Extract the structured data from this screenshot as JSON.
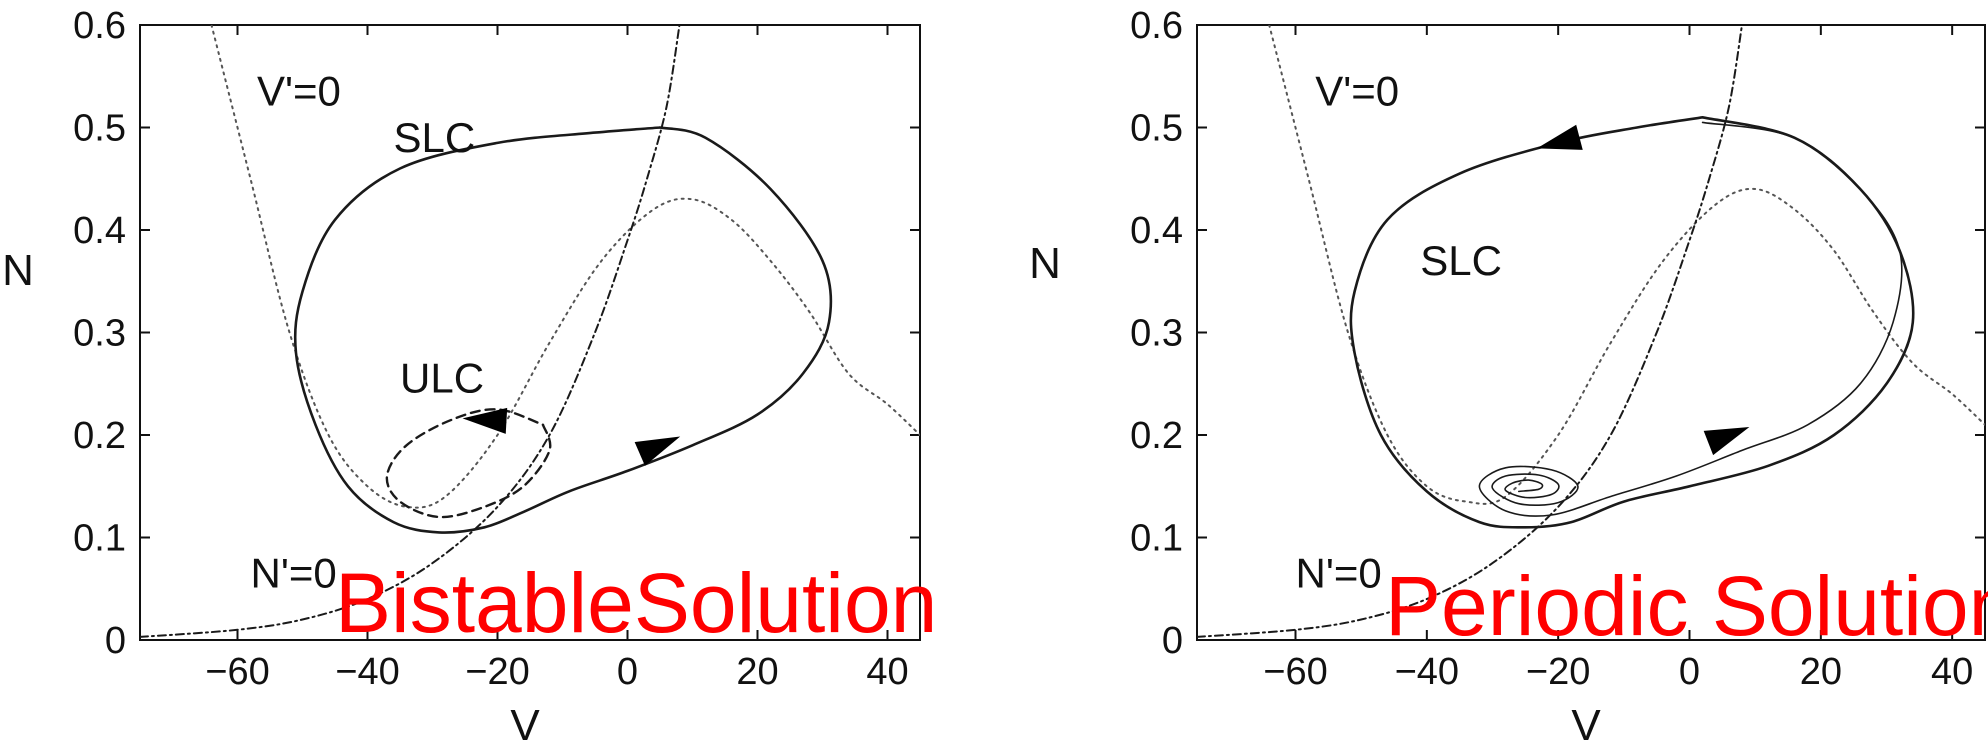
{
  "chart_data": [
    {
      "type": "line",
      "title": "",
      "xlabel": "V",
      "ylabel": "N",
      "xlim": [
        -75,
        45
      ],
      "ylim": [
        0,
        0.6
      ],
      "xticks": [
        -60,
        -40,
        -20,
        0,
        20,
        40
      ],
      "xtick_labels": [
        "−60",
        "−40",
        "−20",
        "0",
        "20",
        "40"
      ],
      "yticks": [
        0,
        0.1,
        0.2,
        0.3,
        0.4,
        0.5,
        0.6
      ],
      "ytick_labels": [
        "0",
        "0.1",
        "0.2",
        "0.3",
        "0.4",
        "0.5",
        "0.6"
      ],
      "grid": false,
      "overlay_text": "BistableSolution",
      "overlay_color": "#ff0000",
      "annotations": [
        {
          "text": "V'=0",
          "x": -57,
          "y": 0.535
        },
        {
          "text": "SLC",
          "x": -36,
          "y": 0.49
        },
        {
          "text": "ULC",
          "x": -35,
          "y": 0.255
        },
        {
          "text": "N'=0",
          "x": -58,
          "y": 0.065
        }
      ],
      "series": [
        {
          "style": "dotted",
          "points": [
            [
              -64,
              0.6
            ],
            [
              -58,
              0.45
            ],
            [
              -52,
              0.3
            ],
            [
              -46,
              0.2
            ],
            [
              -40,
              0.15
            ],
            [
              -34,
              0.13
            ],
            [
              -28,
              0.14
            ],
            [
              -20,
              0.2
            ],
            [
              -12,
              0.29
            ],
            [
              -4,
              0.37
            ],
            [
              4,
              0.42
            ],
            [
              10,
              0.43
            ],
            [
              16,
              0.41
            ],
            [
              22,
              0.37
            ],
            [
              28,
              0.32
            ],
            [
              34,
              0.26
            ],
            [
              40,
              0.23
            ],
            [
              45,
              0.2
            ]
          ]
        },
        {
          "style": "dashdot",
          "points": [
            [
              -75,
              0.003
            ],
            [
              -60,
              0.01
            ],
            [
              -50,
              0.02
            ],
            [
              -40,
              0.04
            ],
            [
              -30,
              0.075
            ],
            [
              -20,
              0.13
            ],
            [
              -12,
              0.2
            ],
            [
              -5,
              0.3
            ],
            [
              0,
              0.39
            ],
            [
              3,
              0.45
            ],
            [
              6,
              0.52
            ],
            [
              8,
              0.6
            ]
          ]
        },
        {
          "style": "solid",
          "points": [
            [
              5,
              0.5
            ],
            [
              -5,
              0.495
            ],
            [
              -20,
              0.485
            ],
            [
              -35,
              0.46
            ],
            [
              -45,
              0.41
            ],
            [
              -50,
              0.34
            ],
            [
              -51,
              0.28
            ],
            [
              -48,
              0.21
            ],
            [
              -43,
              0.15
            ],
            [
              -36,
              0.115
            ],
            [
              -29,
              0.105
            ],
            [
              -22,
              0.11
            ],
            [
              -16,
              0.125
            ],
            [
              -9,
              0.145
            ],
            [
              0,
              0.165
            ],
            [
              10,
              0.19
            ],
            [
              20,
              0.22
            ],
            [
              27,
              0.26
            ],
            [
              31,
              0.31
            ],
            [
              30,
              0.37
            ],
            [
              22,
              0.44
            ],
            [
              12,
              0.49
            ],
            [
              5,
              0.5
            ]
          ],
          "arrows": [
            {
              "x": 5,
              "y": 0.19,
              "dir": "right"
            }
          ]
        },
        {
          "style": "dashed",
          "points": [
            [
              -13,
              0.21
            ],
            [
              -12,
              0.185
            ],
            [
              -16,
              0.15
            ],
            [
              -22,
              0.13
            ],
            [
              -29,
              0.12
            ],
            [
              -35,
              0.135
            ],
            [
              -37,
              0.16
            ],
            [
              -34,
              0.19
            ],
            [
              -27,
              0.215
            ],
            [
              -20,
              0.225
            ],
            [
              -13,
              0.21
            ]
          ],
          "arrows": [
            {
              "x": -22,
              "y": 0.215,
              "dir": "left"
            }
          ]
        }
      ]
    },
    {
      "type": "line",
      "title": "",
      "xlabel": "V",
      "ylabel": "N",
      "xlim": [
        -75,
        45
      ],
      "ylim": [
        0,
        0.6
      ],
      "xticks": [
        -60,
        -40,
        -20,
        0,
        20,
        40
      ],
      "xtick_labels": [
        "−60",
        "−40",
        "−20",
        "0",
        "20",
        "40"
      ],
      "yticks": [
        0,
        0.1,
        0.2,
        0.3,
        0.4,
        0.5,
        0.6
      ],
      "ytick_labels": [
        "0",
        "0.1",
        "0.2",
        "0.3",
        "0.4",
        "0.5",
        "0.6"
      ],
      "grid": false,
      "overlay_text": "Periodic Solution",
      "overlay_color": "#ff0000",
      "annotations": [
        {
          "text": "V'=0",
          "x": -57,
          "y": 0.535
        },
        {
          "text": "SLC",
          "x": -41,
          "y": 0.37
        },
        {
          "text": "N'=0",
          "x": -60,
          "y": 0.065
        }
      ],
      "series": [
        {
          "style": "dotted",
          "points": [
            [
              -64,
              0.6
            ],
            [
              -58,
              0.45
            ],
            [
              -52,
              0.3
            ],
            [
              -46,
              0.2
            ],
            [
              -40,
              0.15
            ],
            [
              -34,
              0.135
            ],
            [
              -28,
              0.14
            ],
            [
              -20,
              0.2
            ],
            [
              -12,
              0.29
            ],
            [
              -4,
              0.37
            ],
            [
              4,
              0.425
            ],
            [
              10,
              0.44
            ],
            [
              16,
              0.42
            ],
            [
              22,
              0.38
            ],
            [
              28,
              0.32
            ],
            [
              34,
              0.27
            ],
            [
              40,
              0.24
            ],
            [
              45,
              0.21
            ]
          ]
        },
        {
          "style": "dashdot",
          "points": [
            [
              -75,
              0.003
            ],
            [
              -60,
              0.01
            ],
            [
              -50,
              0.02
            ],
            [
              -40,
              0.04
            ],
            [
              -30,
              0.075
            ],
            [
              -20,
              0.13
            ],
            [
              -12,
              0.2
            ],
            [
              -5,
              0.3
            ],
            [
              0,
              0.39
            ],
            [
              3,
              0.45
            ],
            [
              6,
              0.52
            ],
            [
              8,
              0.6
            ]
          ]
        },
        {
          "style": "solid",
          "points": [
            [
              2,
              0.51
            ],
            [
              -8,
              0.5
            ],
            [
              -20,
              0.485
            ],
            [
              -35,
              0.455
            ],
            [
              -46,
              0.41
            ],
            [
              -51,
              0.34
            ],
            [
              -51,
              0.28
            ],
            [
              -47,
              0.2
            ],
            [
              -40,
              0.145
            ],
            [
              -32,
              0.115
            ],
            [
              -25,
              0.11
            ],
            [
              -18,
              0.115
            ],
            [
              -10,
              0.135
            ],
            [
              0,
              0.15
            ],
            [
              12,
              0.17
            ],
            [
              22,
              0.2
            ],
            [
              30,
              0.25
            ],
            [
              34,
              0.31
            ],
            [
              32,
              0.38
            ],
            [
              26,
              0.44
            ],
            [
              16,
              0.49
            ],
            [
              2,
              0.51
            ]
          ],
          "arrows": [
            {
              "x": -20,
              "y": 0.485,
              "dir": "left"
            }
          ]
        },
        {
          "style": "thin",
          "points": [
            [
              -26,
              0.145
            ],
            [
              -23,
              0.147
            ],
            [
              -22.5,
              0.152
            ],
            [
              -24.5,
              0.156
            ],
            [
              -27,
              0.153
            ],
            [
              -28,
              0.146
            ],
            [
              -25,
              0.139
            ],
            [
              -21,
              0.142
            ],
            [
              -20,
              0.152
            ],
            [
              -23,
              0.161
            ],
            [
              -28,
              0.16
            ],
            [
              -30,
              0.148
            ],
            [
              -26,
              0.133
            ],
            [
              -20,
              0.134
            ],
            [
              -17,
              0.15
            ],
            [
              -21,
              0.166
            ],
            [
              -28,
              0.168
            ],
            [
              -32,
              0.15
            ],
            [
              -28,
              0.126
            ],
            [
              -21,
              0.122
            ],
            [
              -12,
              0.14
            ],
            [
              -2,
              0.16
            ],
            [
              8,
              0.185
            ],
            [
              18,
              0.21
            ],
            [
              26,
              0.25
            ],
            [
              31,
              0.31
            ],
            [
              32,
              0.38
            ],
            [
              26,
              0.44
            ],
            [
              16,
              0.49
            ],
            [
              2,
              0.505
            ]
          ],
          "arrows": [
            {
              "x": 6,
              "y": 0.2,
              "dir": "right"
            }
          ]
        }
      ]
    }
  ]
}
